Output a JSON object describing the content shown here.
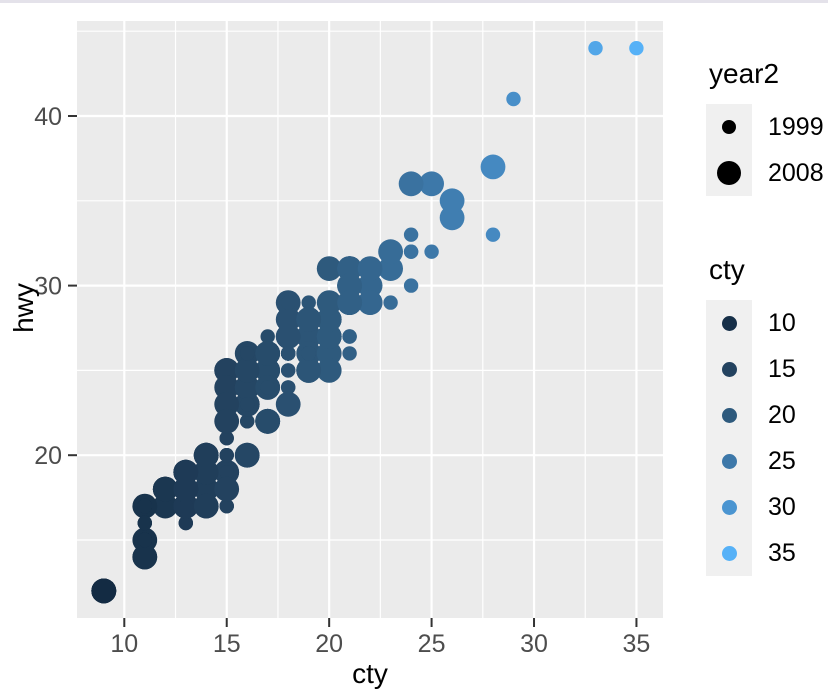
{
  "window": {
    "top_border_color": "#e4e2ea"
  },
  "chart_data": {
    "type": "scatter",
    "title": "",
    "xlabel": "cty",
    "ylabel": "hwy",
    "x_ticks": [
      10,
      15,
      20,
      25,
      30,
      35
    ],
    "y_ticks": [
      20,
      30,
      40
    ],
    "x_minor": [
      12.5,
      17.5,
      22.5,
      27.5,
      32.5
    ],
    "y_minor": [
      15,
      25,
      35,
      45
    ],
    "xlim": [
      7.7,
      36.3
    ],
    "ylim": [
      10.4,
      45.6
    ],
    "panel_bg": "#ebebeb",
    "grid_color": "#ffffff",
    "axis_text_color": "#4d4d4d",
    "tick_mark_color": "#333333",
    "color_scale_stops": [
      [
        9,
        "#132B43"
      ],
      [
        15,
        "#23425F"
      ],
      [
        20,
        "#2E5A7D"
      ],
      [
        25,
        "#3D78A9"
      ],
      [
        30,
        "#4B95D1"
      ],
      [
        35,
        "#56B1F7"
      ]
    ],
    "size_map": {
      "1999": 7.2,
      "2008": 12.4
    },
    "points": [
      [
        18,
        29,
        1999
      ],
      [
        21,
        29,
        1999
      ],
      [
        20,
        31,
        2008
      ],
      [
        21,
        30,
        2008
      ],
      [
        16,
        26,
        1999
      ],
      [
        18,
        26,
        1999
      ],
      [
        18,
        27,
        2008
      ],
      [
        18,
        26,
        1999
      ],
      [
        16,
        25,
        1999
      ],
      [
        20,
        28,
        2008
      ],
      [
        19,
        27,
        2008
      ],
      [
        15,
        25,
        1999
      ],
      [
        17,
        25,
        1999
      ],
      [
        17,
        25,
        2008
      ],
      [
        15,
        25,
        2008
      ],
      [
        15,
        24,
        1999
      ],
      [
        17,
        25,
        2008
      ],
      [
        16,
        23,
        2008
      ],
      [
        14,
        20,
        2008
      ],
      [
        11,
        15,
        2008
      ],
      [
        14,
        20,
        2008
      ],
      [
        13,
        17,
        1999
      ],
      [
        12,
        17,
        2008
      ],
      [
        16,
        26,
        1999
      ],
      [
        15,
        23,
        1999
      ],
      [
        16,
        26,
        2008
      ],
      [
        15,
        25,
        2008
      ],
      [
        15,
        24,
        2008
      ],
      [
        14,
        19,
        2008
      ],
      [
        11,
        14,
        2008
      ],
      [
        11,
        15,
        1999
      ],
      [
        14,
        17,
        1999
      ],
      [
        19,
        27,
        1999
      ],
      [
        22,
        30,
        2008
      ],
      [
        18,
        26,
        1999
      ],
      [
        18,
        29,
        2008
      ],
      [
        17,
        26,
        2008
      ],
      [
        18,
        24,
        1999
      ],
      [
        17,
        24,
        1999
      ],
      [
        16,
        22,
        1999
      ],
      [
        16,
        22,
        1999
      ],
      [
        17,
        22,
        2008
      ],
      [
        17,
        22,
        2008
      ],
      [
        11,
        17,
        2008
      ],
      [
        15,
        22,
        1999
      ],
      [
        15,
        21,
        1999
      ],
      [
        16,
        23,
        2008
      ],
      [
        16,
        23,
        2008
      ],
      [
        15,
        19,
        2008
      ],
      [
        14,
        18,
        2008
      ],
      [
        13,
        17,
        1999
      ],
      [
        13,
        17,
        1999
      ],
      [
        14,
        19,
        2008
      ],
      [
        14,
        19,
        2008
      ],
      [
        9,
        12,
        2008
      ],
      [
        11,
        17,
        1999
      ],
      [
        11,
        15,
        1999
      ],
      [
        13,
        17,
        1999
      ],
      [
        13,
        17,
        2008
      ],
      [
        9,
        12,
        2008
      ],
      [
        13,
        17,
        2008
      ],
      [
        11,
        16,
        1999
      ],
      [
        13,
        18,
        2008
      ],
      [
        11,
        15,
        1999
      ],
      [
        13,
        17,
        2008
      ],
      [
        13,
        17,
        2008
      ],
      [
        9,
        12,
        2008
      ],
      [
        13,
        17,
        2008
      ],
      [
        13,
        17,
        2008
      ],
      [
        9,
        12,
        2008
      ],
      [
        11,
        15,
        1999
      ],
      [
        11,
        16,
        1999
      ],
      [
        13,
        17,
        2008
      ],
      [
        11,
        15,
        1999
      ],
      [
        11,
        17,
        1999
      ],
      [
        11,
        17,
        1999
      ],
      [
        12,
        18,
        2008
      ],
      [
        14,
        17,
        1999
      ],
      [
        15,
        19,
        1999
      ],
      [
        13,
        19,
        2008
      ],
      [
        13,
        19,
        2008
      ],
      [
        13,
        17,
        1999
      ],
      [
        14,
        17,
        1999
      ],
      [
        14,
        17,
        1999
      ],
      [
        13,
        16,
        1999
      ],
      [
        13,
        16,
        1999
      ],
      [
        13,
        17,
        1999
      ],
      [
        13,
        17,
        2008
      ],
      [
        14,
        17,
        2008
      ],
      [
        13,
        17,
        2008
      ],
      [
        18,
        26,
        1999
      ],
      [
        18,
        25,
        1999
      ],
      [
        17,
        26,
        2008
      ],
      [
        16,
        24,
        2008
      ],
      [
        15,
        21,
        1999
      ],
      [
        15,
        22,
        1999
      ],
      [
        15,
        23,
        2008
      ],
      [
        15,
        22,
        2008
      ],
      [
        14,
        20,
        2008
      ],
      [
        28,
        33,
        1999
      ],
      [
        24,
        32,
        1999
      ],
      [
        25,
        32,
        1999
      ],
      [
        23,
        29,
        1999
      ],
      [
        24,
        32,
        1999
      ],
      [
        26,
        34,
        2008
      ],
      [
        25,
        36,
        2008
      ],
      [
        24,
        36,
        2008
      ],
      [
        21,
        29,
        2008
      ],
      [
        18,
        26,
        1999
      ],
      [
        18,
        27,
        1999
      ],
      [
        21,
        30,
        2008
      ],
      [
        21,
        31,
        2008
      ],
      [
        18,
        26,
        1999
      ],
      [
        18,
        26,
        1999
      ],
      [
        19,
        28,
        2008
      ],
      [
        19,
        29,
        1999
      ],
      [
        19,
        26,
        1999
      ],
      [
        20,
        28,
        2008
      ],
      [
        20,
        27,
        2008
      ],
      [
        17,
        24,
        2008
      ],
      [
        16,
        24,
        2008
      ],
      [
        17,
        24,
        2008
      ],
      [
        17,
        22,
        2008
      ],
      [
        15,
        19,
        2008
      ],
      [
        15,
        20,
        1999
      ],
      [
        14,
        17,
        1999
      ],
      [
        9,
        12,
        2008
      ],
      [
        14,
        19,
        2008
      ],
      [
        13,
        18,
        2008
      ],
      [
        11,
        14,
        2008
      ],
      [
        11,
        15,
        1999
      ],
      [
        11,
        15,
        1999
      ],
      [
        12,
        18,
        2008
      ],
      [
        12,
        18,
        2008
      ],
      [
        11,
        17,
        1999
      ],
      [
        11,
        16,
        1999
      ],
      [
        12,
        18,
        2008
      ],
      [
        14,
        17,
        1999
      ],
      [
        13,
        19,
        2008
      ],
      [
        13,
        19,
        2008
      ],
      [
        13,
        17,
        1999
      ],
      [
        21,
        29,
        1999
      ],
      [
        19,
        27,
        1999
      ],
      [
        23,
        31,
        2008
      ],
      [
        23,
        32,
        2008
      ],
      [
        19,
        27,
        2008
      ],
      [
        19,
        26,
        2008
      ],
      [
        18,
        26,
        1999
      ],
      [
        19,
        25,
        1999
      ],
      [
        19,
        25,
        2008
      ],
      [
        14,
        17,
        1999
      ],
      [
        15,
        17,
        1999
      ],
      [
        14,
        20,
        2008
      ],
      [
        12,
        18,
        2008
      ],
      [
        18,
        26,
        1999
      ],
      [
        16,
        26,
        1999
      ],
      [
        17,
        27,
        1999
      ],
      [
        18,
        28,
        2008
      ],
      [
        16,
        25,
        2008
      ],
      [
        18,
        25,
        1999
      ],
      [
        18,
        24,
        1999
      ],
      [
        20,
        27,
        2008
      ],
      [
        19,
        25,
        2008
      ],
      [
        20,
        26,
        2008
      ],
      [
        18,
        23,
        2008
      ],
      [
        21,
        26,
        1999
      ],
      [
        19,
        26,
        1999
      ],
      [
        19,
        26,
        1999
      ],
      [
        19,
        26,
        1999
      ],
      [
        20,
        27,
        2008
      ],
      [
        20,
        25,
        2008
      ],
      [
        19,
        25,
        2008
      ],
      [
        20,
        27,
        2008
      ],
      [
        15,
        20,
        1999
      ],
      [
        16,
        20,
        1999
      ],
      [
        15,
        19,
        1999
      ],
      [
        15,
        17,
        1999
      ],
      [
        16,
        20,
        2008
      ],
      [
        14,
        17,
        2008
      ],
      [
        21,
        29,
        1999
      ],
      [
        21,
        27,
        1999
      ],
      [
        21,
        31,
        2008
      ],
      [
        21,
        31,
        2008
      ],
      [
        18,
        26,
        1999
      ],
      [
        18,
        26,
        1999
      ],
      [
        19,
        28,
        2008
      ],
      [
        21,
        27,
        1999
      ],
      [
        21,
        29,
        1999
      ],
      [
        21,
        31,
        2008
      ],
      [
        22,
        31,
        2008
      ],
      [
        18,
        26,
        1999
      ],
      [
        18,
        26,
        1999
      ],
      [
        18,
        27,
        2008
      ],
      [
        24,
        30,
        1999
      ],
      [
        24,
        33,
        1999
      ],
      [
        26,
        35,
        1999
      ],
      [
        28,
        37,
        2008
      ],
      [
        26,
        35,
        2008
      ],
      [
        11,
        15,
        1999
      ],
      [
        13,
        18,
        2008
      ],
      [
        15,
        20,
        1999
      ],
      [
        16,
        20,
        1999
      ],
      [
        17,
        22,
        2008
      ],
      [
        15,
        17,
        1999
      ],
      [
        15,
        19,
        1999
      ],
      [
        15,
        18,
        2008
      ],
      [
        16,
        20,
        2008
      ],
      [
        21,
        29,
        1999
      ],
      [
        19,
        26,
        1999
      ],
      [
        21,
        29,
        2008
      ],
      [
        22,
        29,
        2008
      ],
      [
        17,
        24,
        1999
      ],
      [
        33,
        44,
        1999
      ],
      [
        21,
        29,
        1999
      ],
      [
        19,
        26,
        1999
      ],
      [
        22,
        29,
        2008
      ],
      [
        21,
        29,
        2008
      ],
      [
        21,
        29,
        2008
      ],
      [
        21,
        30,
        2008
      ],
      [
        17,
        24,
        1999
      ],
      [
        16,
        23,
        1999
      ],
      [
        35,
        44,
        1999
      ],
      [
        29,
        41,
        1999
      ],
      [
        21,
        29,
        1999
      ],
      [
        19,
        26,
        1999
      ],
      [
        20,
        28,
        2008
      ],
      [
        20,
        29,
        2008
      ],
      [
        21,
        29,
        1999
      ],
      [
        18,
        29,
        1999
      ],
      [
        19,
        28,
        2008
      ],
      [
        21,
        29,
        2008
      ],
      [
        16,
        26,
        1999
      ],
      [
        18,
        26,
        1999
      ],
      [
        17,
        26,
        2008
      ]
    ]
  },
  "legends": {
    "year2": {
      "title": "year2",
      "entries": [
        {
          "label": "1999",
          "color": "#000000",
          "radius": 7.2
        },
        {
          "label": "2008",
          "color": "#000000",
          "radius": 12.4
        }
      ]
    },
    "cty": {
      "title": "cty",
      "entries": [
        {
          "label": "10",
          "value": 10,
          "radius": 7.5
        },
        {
          "label": "15",
          "value": 15,
          "radius": 7.5
        },
        {
          "label": "20",
          "value": 20,
          "radius": 7.5
        },
        {
          "label": "25",
          "value": 25,
          "radius": 7.5
        },
        {
          "label": "30",
          "value": 30,
          "radius": 7.5
        },
        {
          "label": "35",
          "value": 35,
          "radius": 7.5
        }
      ]
    }
  }
}
